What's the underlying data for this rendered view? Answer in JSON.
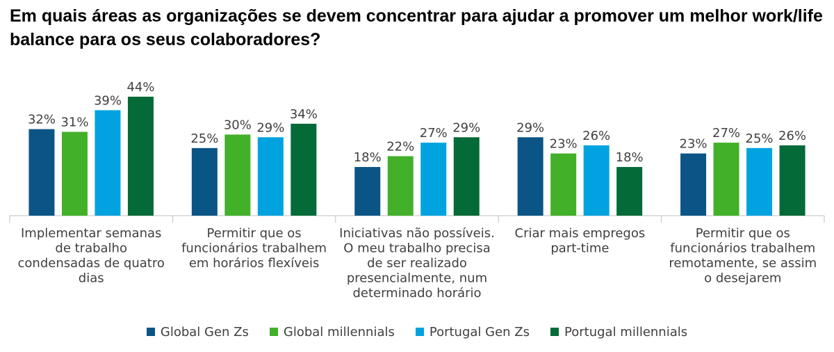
{
  "chart_data": {
    "type": "bar",
    "title": "Em quais áreas as organizações se devem concentrar para ajudar a promover um melhor work/life balance para os seus colaboradores?",
    "categories": [
      [
        "Implementar semanas",
        "de trabalho",
        "condensadas de quatro",
        "dias"
      ],
      [
        "Permitir que os",
        "funcionários trabalhem",
        "em horários flexíveis"
      ],
      [
        "Iniciativas não possíveis.",
        "O meu trabalho precisa",
        "de ser realizado",
        "presencialmente, num",
        "determinado horário"
      ],
      [
        "Criar mais empregos",
        "part-time"
      ],
      [
        "Permitir que os",
        "funcionários trabalhem",
        "remotamente, se assim",
        "o desejarem"
      ]
    ],
    "series": [
      {
        "name": "Global Gen Zs",
        "color": "#0b5586",
        "values": [
          32,
          25,
          18,
          29,
          23
        ],
        "labels": [
          "32%",
          "25%",
          "18%",
          "29%",
          "23%"
        ]
      },
      {
        "name": "Global millennials",
        "color": "#43b02a",
        "values": [
          31,
          30,
          22,
          23,
          27
        ],
        "labels": [
          "31%",
          "30%",
          "22%",
          "23%",
          "27%"
        ]
      },
      {
        "name": "Portugal Gen Zs",
        "color": "#00a3e0",
        "values": [
          39,
          29,
          27,
          26,
          25
        ],
        "labels": [
          "39%",
          "29%",
          "27%",
          "26%",
          "25%"
        ]
      },
      {
        "name": "Portugal millennials",
        "color": "#046a38",
        "values": [
          44,
          34,
          29,
          18,
          26
        ],
        "labels": [
          "44%",
          "34%",
          "29%",
          "18%",
          "26%"
        ]
      }
    ],
    "unit": "%",
    "ylim": [
      0,
      44
    ],
    "grid": false,
    "legend_position": "bottom"
  }
}
